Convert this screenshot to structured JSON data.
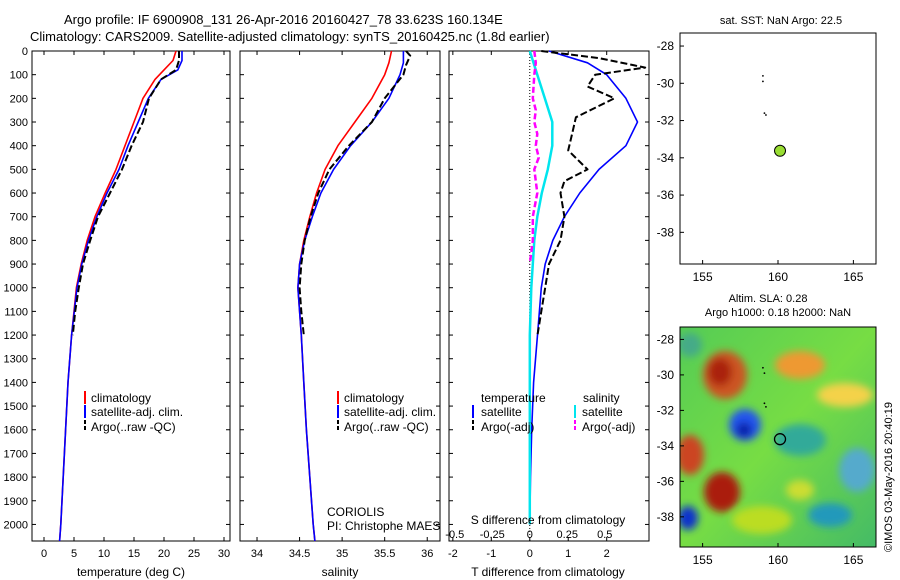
{
  "title": {
    "line1": "Argo profile: IF 6900908_131 26-Apr-2016 20160427_78 33.623S 160.134E",
    "line2": "Climatology: CARS2009. Satellite-adjusted climatology: synTS_20160425.nc (1.8d earlier)"
  },
  "colors": {
    "climatology": "#ff0000",
    "satellite": "#0000ff",
    "argo": "#000000",
    "cyan": "#00e5ee",
    "magenta": "#ff00ff",
    "dot": "#99dd33"
  },
  "panels": {
    "temp": {
      "xlabel": "temperature (deg C)",
      "legend": [
        "climatology",
        "satellite-adj. clim.",
        "Argo(..raw -QC)"
      ]
    },
    "sal": {
      "xlabel": "salinity",
      "legend": [
        "climatology",
        "satellite-adj. clim.",
        "Argo(..raw -QC)"
      ],
      "credit1": "CORIOLIS",
      "credit2": "PI: Christophe MAES"
    },
    "diff": {
      "xlabel": "T difference from climatology",
      "top_label": "S difference from climatology",
      "legend_t_head": "temperature",
      "legend_s_head": "salinity",
      "legend": [
        "satellite",
        "Argo(-adj)"
      ]
    },
    "sst": {
      "title": "sat. SST: NaN Argo: 22.5"
    },
    "sla": {
      "title1": "Altim. SLA: 0.28",
      "title2": "Argo h1000: 0.18 h2000: NaN"
    }
  },
  "watermark": "©IMOS 03-May-2016 20:40:19",
  "chart_data": [
    {
      "type": "line",
      "id": "temp",
      "xlabel": "temperature (deg C)",
      "xlim": [
        -2,
        31
      ],
      "ylim": [
        2070,
        0
      ],
      "xticks": [
        0,
        5,
        10,
        15,
        20,
        25,
        30
      ],
      "yticks": [
        0,
        100,
        200,
        300,
        400,
        500,
        600,
        700,
        800,
        900,
        1000,
        1100,
        1200,
        1300,
        1400,
        1500,
        1600,
        1700,
        1800,
        1900,
        2000
      ],
      "series": [
        {
          "name": "climatology",
          "style": "red",
          "depth": [
            0,
            40,
            80,
            120,
            200,
            300,
            400,
            500,
            600,
            700,
            800,
            900,
            1000,
            1200,
            1400,
            1600,
            1800,
            2000,
            2070
          ],
          "values": [
            22,
            21.5,
            20,
            18.5,
            16.5,
            15,
            13.5,
            12,
            10.2,
            8.5,
            7.2,
            6.2,
            5.4,
            4.6,
            4,
            3.6,
            3.2,
            2.8,
            2.6
          ]
        },
        {
          "name": "satellite-adj. clim.",
          "style": "blue",
          "depth": [
            0,
            40,
            80,
            120,
            200,
            300,
            400,
            500,
            600,
            700,
            800,
            900,
            1000,
            1200,
            1400,
            1600,
            1800,
            2000,
            2070
          ],
          "values": [
            23,
            23,
            22.3,
            19.5,
            17.4,
            15.7,
            14,
            12.5,
            10.5,
            8.8,
            7.4,
            6.3,
            5.5,
            4.6,
            4,
            3.6,
            3.2,
            2.8,
            2.6
          ]
        },
        {
          "name": "Argo(..raw -QC)",
          "style": "black-dashed",
          "depth": [
            0,
            40,
            80,
            120,
            200,
            300,
            400,
            500,
            600,
            700,
            800,
            900,
            1000,
            1100,
            1200
          ],
          "values": [
            22.5,
            22.5,
            22,
            19.5,
            17.5,
            16.5,
            14.6,
            13,
            11,
            9,
            7.7,
            6.5,
            5.8,
            5.2,
            4.8
          ]
        }
      ]
    },
    {
      "type": "line",
      "id": "sal",
      "xlabel": "salinity",
      "xlim": [
        33.8,
        36.15
      ],
      "ylim": [
        2070,
        0
      ],
      "xticks": [
        34,
        34.5,
        35,
        35.5,
        36
      ],
      "series": [
        {
          "name": "climatology",
          "style": "red",
          "depth": [
            0,
            50,
            100,
            200,
            300,
            400,
            500,
            600,
            700,
            800,
            900,
            1000,
            1100,
            1200,
            1400,
            1600,
            1800,
            2000,
            2070
          ],
          "values": [
            35.58,
            35.55,
            35.5,
            35.35,
            35.15,
            34.95,
            34.8,
            34.7,
            34.62,
            34.55,
            34.5,
            34.48,
            34.5,
            34.52,
            34.55,
            34.58,
            34.62,
            34.66,
            34.68
          ]
        },
        {
          "name": "satellite-adj. clim.",
          "style": "blue",
          "depth": [
            0,
            50,
            100,
            200,
            300,
            400,
            500,
            600,
            700,
            800,
            900,
            1000,
            1100,
            1200,
            1400,
            1600,
            1800,
            2000,
            2070
          ],
          "values": [
            35.72,
            35.72,
            35.68,
            35.55,
            35.35,
            35.1,
            34.9,
            34.75,
            34.65,
            34.56,
            34.5,
            34.48,
            34.5,
            34.52,
            34.55,
            34.58,
            34.62,
            34.66,
            34.68
          ]
        },
        {
          "name": "Argo(..raw -QC)",
          "style": "black-dashed",
          "depth": [
            0,
            20,
            60,
            100,
            200,
            300,
            400,
            500,
            600,
            700,
            800,
            900,
            1000,
            1100,
            1200
          ],
          "values": [
            35.75,
            35.8,
            35.75,
            35.72,
            35.5,
            35.35,
            35.08,
            34.85,
            34.72,
            34.63,
            34.56,
            34.52,
            34.5,
            34.52,
            34.55
          ]
        }
      ]
    },
    {
      "type": "line",
      "id": "diff",
      "xlabel": "T difference from climatology",
      "top_label": "S difference from climatology",
      "t_xlim": [
        -2.1,
        3.1
      ],
      "t_xticks": [
        -2,
        -1,
        0,
        1,
        2
      ],
      "s_ticks": [
        -0.5,
        -0.25,
        0,
        0.25,
        0.5
      ],
      "ylim": [
        2070,
        0
      ],
      "series": [
        {
          "name": "satellite",
          "group": "temperature",
          "style": "blue",
          "depth": [
            0,
            50,
            100,
            200,
            300,
            400,
            500,
            600,
            700,
            800,
            900,
            1000,
            1200,
            1400,
            1600,
            1800,
            2000
          ],
          "values": [
            0.5,
            1.5,
            2,
            2.5,
            2.8,
            2.5,
            1.8,
            1.3,
            0.9,
            0.6,
            0.4,
            0.3,
            0.2,
            0.1,
            0.05,
            0.02,
            0
          ]
        },
        {
          "name": "Argo(-adj)",
          "group": "temperature",
          "style": "black-dashed",
          "depth": [
            0,
            30,
            70,
            100,
            150,
            200,
            280,
            350,
            420,
            500,
            550,
            600,
            700,
            800,
            900,
            1000,
            1100,
            1200
          ],
          "values": [
            0.3,
            1.8,
            3,
            1.7,
            1.5,
            2.2,
            1.2,
            1.1,
            1,
            1.5,
            0.9,
            0.8,
            0.9,
            0.8,
            0.5,
            0.4,
            0.3,
            0.2
          ]
        },
        {
          "name": "satellite",
          "group": "salinity",
          "style": "cyan",
          "depth": [
            0,
            100,
            200,
            300,
            400,
            500,
            600,
            700,
            800,
            900,
            1000,
            1200,
            1400,
            1600,
            1800,
            2000
          ],
          "values": [
            0,
            0.05,
            0.1,
            0.15,
            0.15,
            0.12,
            0.08,
            0.05,
            0.03,
            0.02,
            0.01,
            0,
            0,
            0,
            0,
            0
          ]
        },
        {
          "name": "Argo(-adj)",
          "group": "salinity",
          "style": "magenta-dashed",
          "depth": [
            0,
            50,
            100,
            200,
            250,
            300,
            350,
            400,
            450,
            500,
            600,
            700,
            800,
            900
          ],
          "values": [
            0.03,
            0.04,
            0.03,
            0.02,
            0.04,
            0.03,
            0.05,
            0.04,
            0.06,
            0.03,
            0.05,
            0.02,
            0.02,
            0
          ]
        }
      ]
    },
    {
      "type": "scatter",
      "id": "sst",
      "title": "sat. SST: NaN Argo: 22.5",
      "xlim": [
        153.5,
        166.5
      ],
      "ylim": [
        -39.7,
        -27.3
      ],
      "xticks": [
        155,
        160,
        165
      ],
      "yticks": [
        -28,
        -30,
        -32,
        -34,
        -36,
        -38
      ],
      "points": [
        {
          "lon": 160.134,
          "lat": -33.623
        }
      ]
    },
    {
      "type": "heatmap",
      "id": "sla",
      "title": "Altim. SLA: 0.28 / Argo h1000: 0.18 h2000: NaN",
      "xlim": [
        153.5,
        166.5
      ],
      "ylim": [
        -39.7,
        -27.3
      ],
      "xticks": [
        155,
        160,
        165
      ],
      "yticks": [
        -28,
        -30,
        -32,
        -34,
        -36,
        -38
      ],
      "points": [
        {
          "lon": 160.134,
          "lat": -33.623
        }
      ]
    }
  ]
}
